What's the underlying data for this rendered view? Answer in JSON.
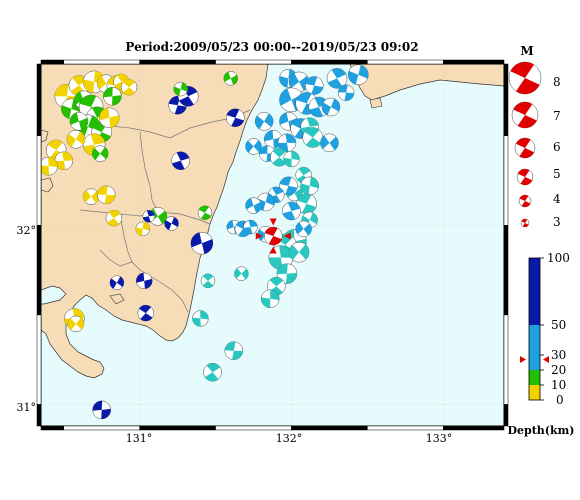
{
  "title": "Period:2009/05/23 00:00--2019/05/23 09:02",
  "axes": {
    "x_ticks": [
      "131°",
      "132°",
      "133°"
    ],
    "y_ticks": [
      "32°",
      "31°"
    ]
  },
  "magnitude_legend": {
    "header": "M",
    "entries": [
      "8",
      "7",
      "6",
      "5",
      "4",
      "3"
    ]
  },
  "depth_legend": {
    "ticks": [
      "100",
      "50",
      "30",
      "20",
      "10",
      "0"
    ],
    "label": "Depth(km)",
    "colors": {
      "0-10": "#f2d300",
      "10-20": "#22c000",
      "20-50": "#1fa0e0",
      "50-100": "#0a1aa8"
    },
    "mainshock_marker_depth": 27
  },
  "colors": {
    "sea": "#e6fbfb",
    "land": "#f7dcb8",
    "mainshock": "#e00000",
    "shallow_cyan": "#28c8c0"
  },
  "map_extent": {
    "lon": [
      130.35,
      133.4
    ],
    "lat": [
      30.88,
      32.9
    ]
  },
  "events": [
    {
      "lon": 130.52,
      "lat": 32.72,
      "c": "y",
      "s": 12
    },
    {
      "lon": 130.6,
      "lat": 32.78,
      "c": "y",
      "s": 10
    },
    {
      "lon": 130.7,
      "lat": 32.8,
      "c": "y",
      "s": 11
    },
    {
      "lon": 130.78,
      "lat": 32.79,
      "c": "y",
      "s": 9
    },
    {
      "lon": 130.85,
      "lat": 32.78,
      "c": "y",
      "s": 10
    },
    {
      "lon": 130.88,
      "lat": 32.8,
      "c": "y",
      "s": 8
    },
    {
      "lon": 130.55,
      "lat": 32.65,
      "c": "g",
      "s": 10
    },
    {
      "lon": 130.63,
      "lat": 32.7,
      "c": "g",
      "s": 9
    },
    {
      "lon": 130.68,
      "lat": 32.66,
      "c": "g",
      "s": 12
    },
    {
      "lon": 130.72,
      "lat": 32.6,
      "c": "g",
      "s": 11
    },
    {
      "lon": 130.66,
      "lat": 32.55,
      "c": "g",
      "s": 12
    },
    {
      "lon": 130.6,
      "lat": 32.58,
      "c": "g",
      "s": 9
    },
    {
      "lon": 130.75,
      "lat": 32.52,
      "c": "g",
      "s": 10
    },
    {
      "lon": 130.7,
      "lat": 32.45,
      "c": "y",
      "s": 11
    },
    {
      "lon": 130.58,
      "lat": 32.48,
      "c": "y",
      "s": 9
    },
    {
      "lon": 130.8,
      "lat": 32.6,
      "c": "y",
      "s": 10
    },
    {
      "lon": 130.45,
      "lat": 32.42,
      "c": "y",
      "s": 10
    },
    {
      "lon": 130.5,
      "lat": 32.36,
      "c": "y",
      "s": 9
    },
    {
      "lon": 130.74,
      "lat": 32.4,
      "c": "g",
      "s": 8
    },
    {
      "lon": 130.82,
      "lat": 32.72,
      "c": "g",
      "s": 9
    },
    {
      "lon": 130.93,
      "lat": 32.77,
      "c": "y",
      "s": 8
    },
    {
      "lon": 130.4,
      "lat": 32.33,
      "c": "y",
      "s": 9
    },
    {
      "lon": 130.68,
      "lat": 32.16,
      "c": "y",
      "s": 8
    },
    {
      "lon": 130.78,
      "lat": 32.17,
      "c": "y",
      "s": 9
    },
    {
      "lon": 130.83,
      "lat": 32.04,
      "c": "y",
      "s": 8
    },
    {
      "lon": 131.02,
      "lat": 31.98,
      "c": "y",
      "s": 7
    },
    {
      "lon": 131.12,
      "lat": 32.05,
      "c": "g",
      "s": 9
    },
    {
      "lon": 131.25,
      "lat": 32.67,
      "c": "b",
      "s": 9
    },
    {
      "lon": 131.32,
      "lat": 32.72,
      "c": "b",
      "s": 10
    },
    {
      "lon": 131.27,
      "lat": 32.76,
      "c": "g",
      "s": 7
    },
    {
      "lon": 131.6,
      "lat": 32.82,
      "c": "g",
      "s": 7
    },
    {
      "lon": 131.63,
      "lat": 32.6,
      "c": "b",
      "s": 9
    },
    {
      "lon": 131.27,
      "lat": 32.36,
      "c": "b",
      "s": 9
    },
    {
      "lon": 131.21,
      "lat": 32.01,
      "c": "b",
      "s": 7
    },
    {
      "lon": 131.41,
      "lat": 31.9,
      "c": "b",
      "s": 11
    },
    {
      "lon": 131.43,
      "lat": 32.07,
      "c": "g",
      "s": 7
    },
    {
      "lon": 131.06,
      "lat": 32.05,
      "c": "b",
      "s": 6
    },
    {
      "lon": 130.85,
      "lat": 31.68,
      "c": "b",
      "s": 7
    },
    {
      "lon": 131.03,
      "lat": 31.69,
      "c": "b",
      "s": 8
    },
    {
      "lon": 131.04,
      "lat": 31.51,
      "c": "b",
      "s": 8
    },
    {
      "lon": 130.57,
      "lat": 31.48,
      "c": "y",
      "s": 10
    },
    {
      "lon": 130.58,
      "lat": 31.45,
      "c": "y",
      "s": 8
    },
    {
      "lon": 130.75,
      "lat": 30.97,
      "c": "b",
      "s": 9
    },
    {
      "lon": 131.45,
      "lat": 31.69,
      "c": "c",
      "s": 7
    },
    {
      "lon": 131.4,
      "lat": 31.48,
      "c": "c",
      "s": 8
    },
    {
      "lon": 131.67,
      "lat": 31.73,
      "c": "c",
      "s": 7
    },
    {
      "lon": 131.62,
      "lat": 31.3,
      "c": "c",
      "s": 9
    },
    {
      "lon": 131.48,
      "lat": 31.18,
      "c": "c",
      "s": 9
    },
    {
      "lon": 131.98,
      "lat": 32.82,
      "c": "a",
      "s": 9
    },
    {
      "lon": 132.05,
      "lat": 32.8,
      "c": "a",
      "s": 10
    },
    {
      "lon": 132.15,
      "lat": 32.78,
      "c": "a",
      "s": 9
    },
    {
      "lon": 132.3,
      "lat": 32.82,
      "c": "a",
      "s": 10
    },
    {
      "lon": 132.44,
      "lat": 32.84,
      "c": "a",
      "s": 10
    },
    {
      "lon": 132.0,
      "lat": 32.7,
      "c": "a",
      "s": 12
    },
    {
      "lon": 132.1,
      "lat": 32.68,
      "c": "a",
      "s": 11
    },
    {
      "lon": 132.18,
      "lat": 32.66,
      "c": "a",
      "s": 10
    },
    {
      "lon": 132.26,
      "lat": 32.66,
      "c": "a",
      "s": 9
    },
    {
      "lon": 131.98,
      "lat": 32.58,
      "c": "a",
      "s": 9
    },
    {
      "lon": 132.06,
      "lat": 32.54,
      "c": "a",
      "s": 10
    },
    {
      "lon": 132.12,
      "lat": 32.55,
      "c": "c",
      "s": 9
    },
    {
      "lon": 131.82,
      "lat": 32.58,
      "c": "a",
      "s": 9
    },
    {
      "lon": 131.88,
      "lat": 32.48,
      "c": "a",
      "s": 9
    },
    {
      "lon": 132.14,
      "lat": 32.49,
      "c": "c",
      "s": 10
    },
    {
      "lon": 131.97,
      "lat": 32.46,
      "c": "a",
      "s": 9
    },
    {
      "lon": 131.75,
      "lat": 32.44,
      "c": "a",
      "s": 8
    },
    {
      "lon": 131.84,
      "lat": 32.4,
      "c": "a",
      "s": 8
    },
    {
      "lon": 131.92,
      "lat": 32.38,
      "c": "c",
      "s": 9
    },
    {
      "lon": 132.0,
      "lat": 32.37,
      "c": "c",
      "s": 8
    },
    {
      "lon": 132.25,
      "lat": 32.46,
      "c": "a",
      "s": 9
    },
    {
      "lon": 132.36,
      "lat": 32.74,
      "c": "a",
      "s": 8
    },
    {
      "lon": 132.08,
      "lat": 32.28,
      "c": "c",
      "s": 8
    },
    {
      "lon": 132.12,
      "lat": 32.22,
      "c": "c",
      "s": 9
    },
    {
      "lon": 132.02,
      "lat": 32.18,
      "c": "c",
      "s": 8
    },
    {
      "lon": 131.98,
      "lat": 32.22,
      "c": "a",
      "s": 9
    },
    {
      "lon": 131.9,
      "lat": 32.17,
      "c": "a",
      "s": 8
    },
    {
      "lon": 131.83,
      "lat": 32.13,
      "c": "a",
      "s": 9
    },
    {
      "lon": 131.75,
      "lat": 32.11,
      "c": "a",
      "s": 8
    },
    {
      "lon": 132.1,
      "lat": 32.12,
      "c": "c",
      "s": 10
    },
    {
      "lon": 132.0,
      "lat": 32.08,
      "c": "a",
      "s": 9
    },
    {
      "lon": 132.12,
      "lat": 32.03,
      "c": "c",
      "s": 8
    },
    {
      "lon": 131.62,
      "lat": 31.99,
      "c": "a",
      "s": 7
    },
    {
      "lon": 131.68,
      "lat": 31.98,
      "c": "a",
      "s": 8
    },
    {
      "lon": 131.73,
      "lat": 31.99,
      "c": "a",
      "s": 7
    },
    {
      "lon": 131.83,
      "lat": 31.95,
      "c": "a",
      "s": 8
    },
    {
      "lon": 132.02,
      "lat": 31.91,
      "c": "c",
      "s": 12
    },
    {
      "lon": 131.96,
      "lat": 31.89,
      "c": "c",
      "s": 11
    },
    {
      "lon": 131.93,
      "lat": 31.82,
      "c": "c",
      "s": 12
    },
    {
      "lon": 132.05,
      "lat": 31.85,
      "c": "c",
      "s": 10
    },
    {
      "lon": 131.97,
      "lat": 31.73,
      "c": "c",
      "s": 10
    },
    {
      "lon": 131.9,
      "lat": 31.66,
      "c": "c",
      "s": 9
    },
    {
      "lon": 131.86,
      "lat": 31.59,
      "c": "c",
      "s": 9
    },
    {
      "lon": 132.08,
      "lat": 31.98,
      "c": "a",
      "s": 8
    }
  ],
  "mainshock": {
    "lon": 131.88,
    "lat": 31.94,
    "c": "r",
    "s": 9
  }
}
